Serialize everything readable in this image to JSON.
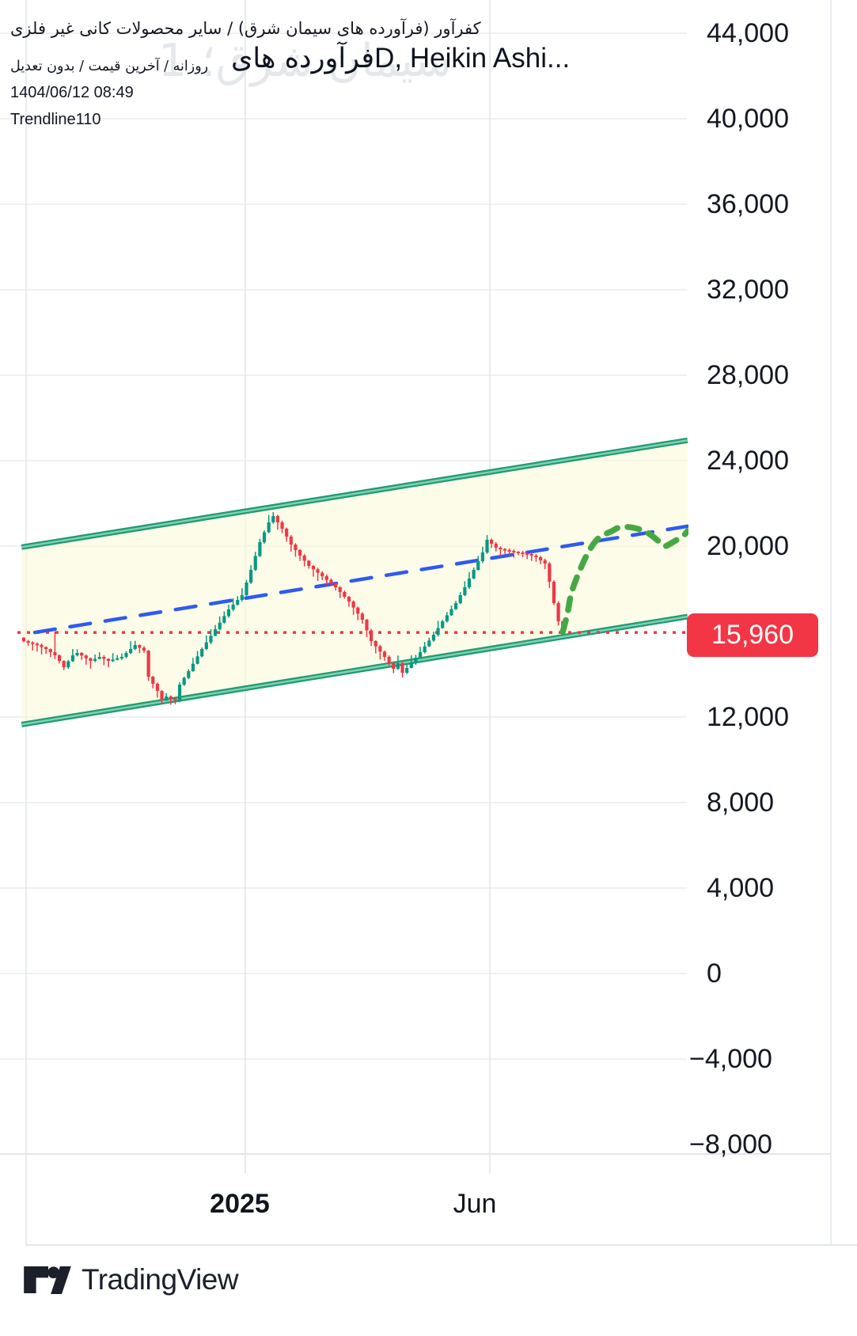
{
  "header": {
    "instrument_line": "کفرآور (فرآورده های سیمان شرق) / سایر محصولات کانی غیر فلزی",
    "watermark": "سیمان شرق؛ 1",
    "legend_symbol": "فرآورده های",
    "legend_suffix": "D, Heikin Ashi...",
    "info_line": "روزانه / آخرین قیمت / بدون تعدیل",
    "datetime": "1404/06/12 08:49",
    "indicator": "Trendline110"
  },
  "footer": {
    "logo_text": "TradingView"
  },
  "price_axis": {
    "ticks": [
      {
        "label": "44,000",
        "value": 44000
      },
      {
        "label": "40,000",
        "value": 40000
      },
      {
        "label": "36,000",
        "value": 36000
      },
      {
        "label": "32,000",
        "value": 32000
      },
      {
        "label": "28,000",
        "value": 28000
      },
      {
        "label": "24,000",
        "value": 24000
      },
      {
        "label": "20,000",
        "value": 20000
      },
      {
        "label": "12,000",
        "value": 12000
      },
      {
        "label": "8,000",
        "value": 8000
      },
      {
        "label": "4,000",
        "value": 4000
      },
      {
        "label": "0",
        "value": 0
      },
      {
        "label": "−4,000",
        "value": -4000
      },
      {
        "label": "−8,000",
        "value": -8000
      }
    ],
    "last_price_label": "15,960",
    "last_price_value": 15960,
    "badge_color": "#f23645"
  },
  "time_axis": {
    "labels": [
      {
        "text": "2025",
        "bold": true
      },
      {
        "text": "Jun",
        "bold": false
      }
    ]
  },
  "chart_data": {
    "type": "candlestick",
    "style": "heikin-ashi",
    "title": "فرآورده های سیمان شرق — D, Heikin Ashi",
    "ylim": [
      -9000,
      44500
    ],
    "y_tick_step": 4000,
    "grid": true,
    "colors": {
      "up": "#089981",
      "down": "#f23645",
      "channel": "#1f9c73",
      "channel_core": "#85d1b4",
      "channel_fill": "rgba(250,250,218,0.62)",
      "trendline_blue": "#2f5af0",
      "price_line_red": "#f23645",
      "projection_green": "#46a844",
      "grid_color": "#eef0f4",
      "border_color": "#e3e6ec"
    },
    "anchors": [
      [
        0,
        15556
      ],
      [
        3,
        15370
      ],
      [
        5,
        15185
      ],
      [
        7,
        14889
      ],
      [
        8,
        14630
      ],
      [
        9,
        14333
      ],
      [
        11,
        14889
      ],
      [
        12,
        15000
      ],
      [
        15,
        14630
      ],
      [
        17,
        14815
      ],
      [
        19,
        14630
      ],
      [
        22,
        14815
      ],
      [
        25,
        15370
      ],
      [
        27,
        15111
      ],
      [
        28,
        13889
      ],
      [
        30,
        13222
      ],
      [
        31,
        12778
      ],
      [
        32,
        12963
      ],
      [
        34,
        12778
      ],
      [
        35,
        13519
      ],
      [
        37,
        14148
      ],
      [
        40,
        15185
      ],
      [
        43,
        16111
      ],
      [
        46,
        17037
      ],
      [
        49,
        17704
      ],
      [
        51,
        18889
      ],
      [
        53,
        20185
      ],
      [
        55,
        21111
      ],
      [
        56,
        21407
      ],
      [
        58,
        20815
      ],
      [
        60,
        20074
      ],
      [
        62,
        19556
      ],
      [
        64,
        19074
      ],
      [
        67,
        18593
      ],
      [
        70,
        18074
      ],
      [
        73,
        17407
      ],
      [
        76,
        16556
      ],
      [
        78,
        15556
      ],
      [
        81,
        14815
      ],
      [
        83,
        14259
      ],
      [
        84,
        14519
      ],
      [
        85,
        14074
      ],
      [
        87,
        14519
      ],
      [
        89,
        15037
      ],
      [
        92,
        15852
      ],
      [
        94,
        16481
      ],
      [
        97,
        17333
      ],
      [
        99,
        18074
      ],
      [
        101,
        18889
      ],
      [
        103,
        19704
      ],
      [
        104,
        20296
      ],
      [
        106,
        19926
      ],
      [
        108,
        19815
      ],
      [
        111,
        19704
      ],
      [
        113,
        19630
      ],
      [
        115,
        19481
      ],
      [
        117,
        19185
      ],
      [
        118,
        18333
      ],
      [
        119,
        17333
      ],
      [
        120,
        16481
      ],
      [
        121,
        16000
      ]
    ],
    "wick_overrides": {
      "7": {
        "high": 16000
      },
      "31": {
        "low": 12593
      },
      "56": {
        "high": 21593
      },
      "85": {
        "low": 13852
      },
      "104": {
        "high": 20518
      }
    },
    "projection_green_dashed": [
      [
        121,
        16000
      ],
      [
        122,
        16815
      ],
      [
        123,
        17852
      ],
      [
        125,
        18963
      ],
      [
        127,
        19815
      ],
      [
        129,
        20370
      ],
      [
        132,
        20704
      ],
      [
        134,
        20889
      ],
      [
        137,
        20852
      ],
      [
        140,
        20630
      ],
      [
        143,
        20148
      ],
      [
        144,
        20000
      ],
      [
        146,
        20222
      ],
      [
        148,
        20481
      ],
      [
        149,
        20704
      ]
    ],
    "trendline_blue_dashed": {
      "p1": [
        2.5,
        15960
      ],
      "p2": [
        149,
        20930
      ]
    },
    "price_line_red_dotted": 15960,
    "channel": {
      "upper": {
        "p1": [
          -0.5,
          19950
        ],
        "p2": [
          149,
          24950
        ]
      },
      "lower": {
        "p1": [
          -0.5,
          11650
        ],
        "p2": [
          149,
          16700
        ]
      }
    }
  }
}
